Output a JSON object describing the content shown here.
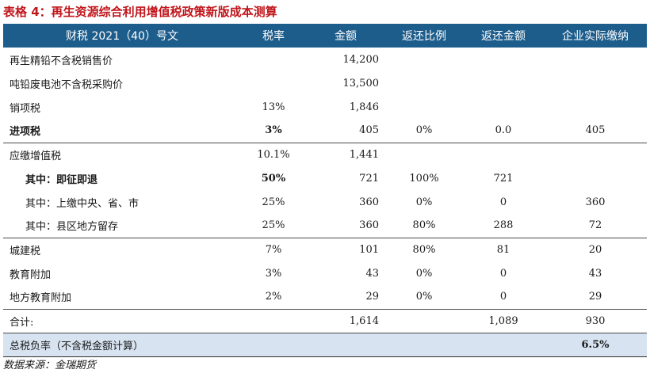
{
  "title": "表格 4：再生资源综合利用增值税政策新版成本测算",
  "header": {
    "col0": "财税 2021（40）号文",
    "col1": "税率",
    "col2": "金额",
    "col3": "返还比例",
    "col4": "返还金额",
    "col5": "企业实际缴纳"
  },
  "rows": [
    {
      "label": "再生精铅不含税销售价",
      "rate": "",
      "amount": "14,200",
      "ratio": "",
      "refund": "",
      "actual": ""
    },
    {
      "label": "吨铅废电池不含税采购价",
      "rate": "",
      "amount": "13,500",
      "ratio": "",
      "refund": "",
      "actual": ""
    },
    {
      "label": "销项税",
      "rate": "13%",
      "amount": "1,846",
      "ratio": "",
      "refund": "",
      "actual": ""
    },
    {
      "label": "进项税",
      "rate": "3%",
      "amount": "405",
      "ratio": "0%",
      "refund": "0.0",
      "actual": "405"
    },
    {
      "label": "应缴增值税",
      "rate": "10.1%",
      "amount": "1,441",
      "ratio": "",
      "refund": "",
      "actual": ""
    },
    {
      "label": "其中：即征即退",
      "rate": "50%",
      "amount": "721",
      "ratio": "100%",
      "refund": "721",
      "actual": ""
    },
    {
      "label": "其中：上缴中央、省、市",
      "rate": "25%",
      "amount": "360",
      "ratio": "0%",
      "refund": "0",
      "actual": "360"
    },
    {
      "label": "其中：县区地方留存",
      "rate": "25%",
      "amount": "360",
      "ratio": "80%",
      "refund": "288",
      "actual": "72"
    },
    {
      "label": "城建税",
      "rate": "7%",
      "amount": "101",
      "ratio": "80%",
      "refund": "81",
      "actual": "20"
    },
    {
      "label": "教育附加",
      "rate": "3%",
      "amount": "43",
      "ratio": "0%",
      "refund": "0",
      "actual": "43"
    },
    {
      "label": "地方教育附加",
      "rate": "2%",
      "amount": "29",
      "ratio": "0%",
      "refund": "0",
      "actual": "29"
    },
    {
      "label": "合计:",
      "rate": "",
      "amount": "1,614",
      "ratio": "",
      "refund": "1,089",
      "actual": "930"
    }
  ],
  "total_row": {
    "label": "总税负率（不含税金额计算）",
    "value": "6.5%"
  },
  "source": "数据来源：金瑞期货"
}
